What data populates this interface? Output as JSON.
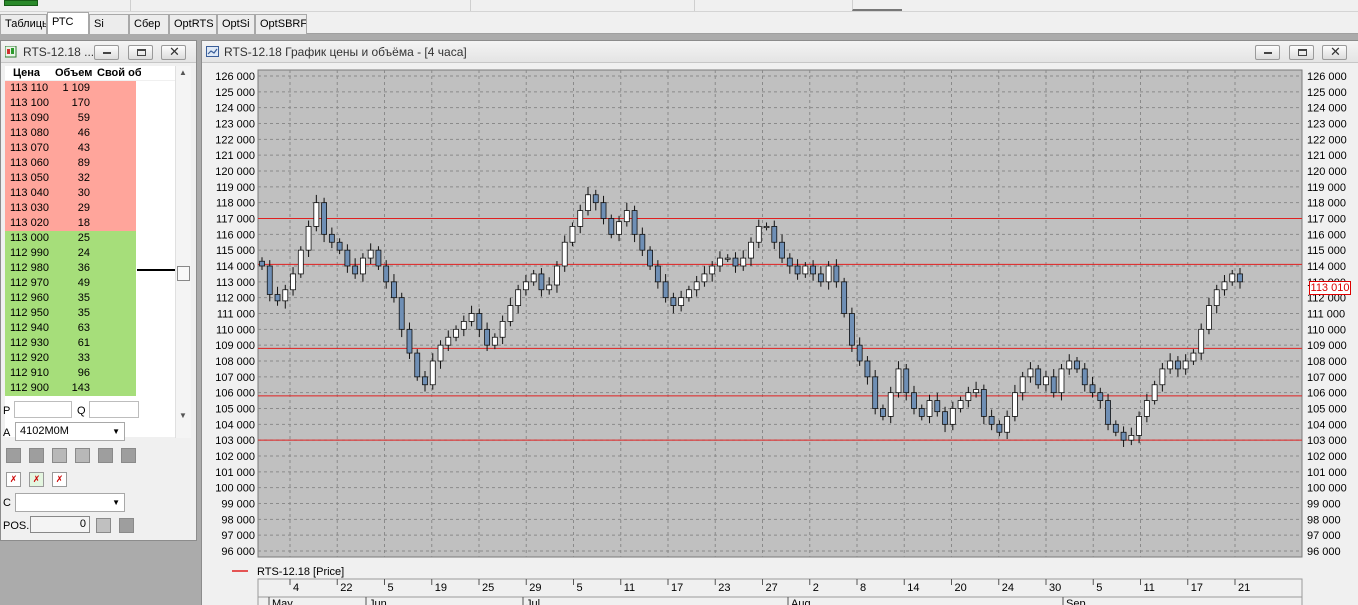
{
  "tabs": [
    "Таблицы",
    "РТС",
    "Si",
    "Сбер",
    "OptRTS",
    "OptSi",
    "OptSBRF"
  ],
  "active_tab": 1,
  "order_book": {
    "title": "RTS-12.18 ...",
    "headers": [
      "Цена",
      "Объем",
      "Свой об"
    ],
    "sell_rows": [
      [
        "113 110",
        "1 109"
      ],
      [
        "113 100",
        "170"
      ],
      [
        "113 090",
        "59"
      ],
      [
        "113 080",
        "46"
      ],
      [
        "113 070",
        "43"
      ],
      [
        "113 060",
        "89"
      ],
      [
        "113 050",
        "32"
      ],
      [
        "113 040",
        "30"
      ],
      [
        "113 030",
        "29"
      ],
      [
        "113 020",
        "18"
      ]
    ],
    "buy_rows": [
      [
        "113 000",
        "25"
      ],
      [
        "112 990",
        "24"
      ],
      [
        "112 980",
        "36"
      ],
      [
        "112 970",
        "49"
      ],
      [
        "112 960",
        "35"
      ],
      [
        "112 950",
        "35"
      ],
      [
        "112 940",
        "63"
      ],
      [
        "112 930",
        "61"
      ],
      [
        "112 920",
        "33"
      ],
      [
        "112 910",
        "96"
      ],
      [
        "112 900",
        "143"
      ]
    ],
    "label_p": "P",
    "label_q": "Q",
    "label_a": "A",
    "account": "4102M0M",
    "label_c": "C",
    "label_pos": "POS.",
    "pos_value": "0"
  },
  "chart_window": {
    "title": "RTS-12.18 График цены и объёма - [4 часа]",
    "legend": "RTS-12.18 [Price]",
    "current_price": "113 010",
    "colors": {
      "candle_body": "#6f8fb5",
      "level_line": "#e02020",
      "background": "#c0c0c0"
    }
  },
  "chart_data": {
    "type": "candlestick",
    "ylim": [
      96000,
      126000
    ],
    "y_ticks": [
      "96 000",
      "97 000",
      "98 000",
      "99 000",
      "100 000",
      "101 000",
      "102 000",
      "103 000",
      "104 000",
      "105 000",
      "106 000",
      "107 000",
      "108 000",
      "109 000",
      "110 000",
      "111 000",
      "112 000",
      "113 000",
      "114 000",
      "115 000",
      "116 000",
      "117 000",
      "118 000",
      "119 000",
      "120 000",
      "121 000",
      "122 000",
      "123 000",
      "124 000",
      "125 000",
      "126 000"
    ],
    "x_day_ticks": [
      "4",
      "22",
      "5",
      "19",
      "25",
      "29",
      "5",
      "11",
      "17",
      "23",
      "27",
      "2",
      "8",
      "14",
      "20",
      "24",
      "30",
      "5",
      "11",
      "17",
      "21"
    ],
    "x_month_ticks": [
      "May",
      "Jun",
      "Jul",
      "Aug",
      "Sep"
    ],
    "grid": true,
    "horizontal_levels": [
      117000,
      114100,
      108800,
      105800,
      103000
    ],
    "current_price": 113010,
    "approx_closes": [
      114000,
      112200,
      111800,
      112500,
      113500,
      115000,
      116500,
      118000,
      116000,
      115500,
      115000,
      114000,
      113500,
      114500,
      115000,
      114000,
      113000,
      112000,
      110000,
      108500,
      107000,
      106500,
      108000,
      109000,
      109500,
      110000,
      110500,
      111000,
      110000,
      109000,
      109500,
      110500,
      111500,
      112500,
      113000,
      113500,
      112500,
      112800,
      114000,
      115500,
      116500,
      117500,
      118500,
      118000,
      117000,
      116000,
      116800,
      117500,
      116000,
      115000,
      114000,
      113000,
      112000,
      111500,
      112000,
      112500,
      113000,
      113500,
      114000,
      114500,
      114500,
      114000,
      114500,
      115500,
      116500,
      116500,
      115500,
      114500,
      114000,
      113500,
      114000,
      113500,
      113000,
      114000,
      113000,
      111000,
      109000,
      108000,
      107000,
      105000,
      104500,
      106000,
      107500,
      106000,
      105000,
      104500,
      105500,
      104800,
      104000,
      105000,
      105500,
      106000,
      106200,
      104500,
      104000,
      103500,
      104500,
      106000,
      107000,
      107500,
      106500,
      107000,
      106000,
      107500,
      108000,
      107500,
      106500,
      106000,
      105500,
      104000,
      103500,
      103000,
      103300,
      104500,
      105500,
      106500,
      107500,
      108000,
      107500,
      108000,
      108500,
      110000,
      111500,
      112500,
      113000,
      113500,
      113000
    ]
  }
}
